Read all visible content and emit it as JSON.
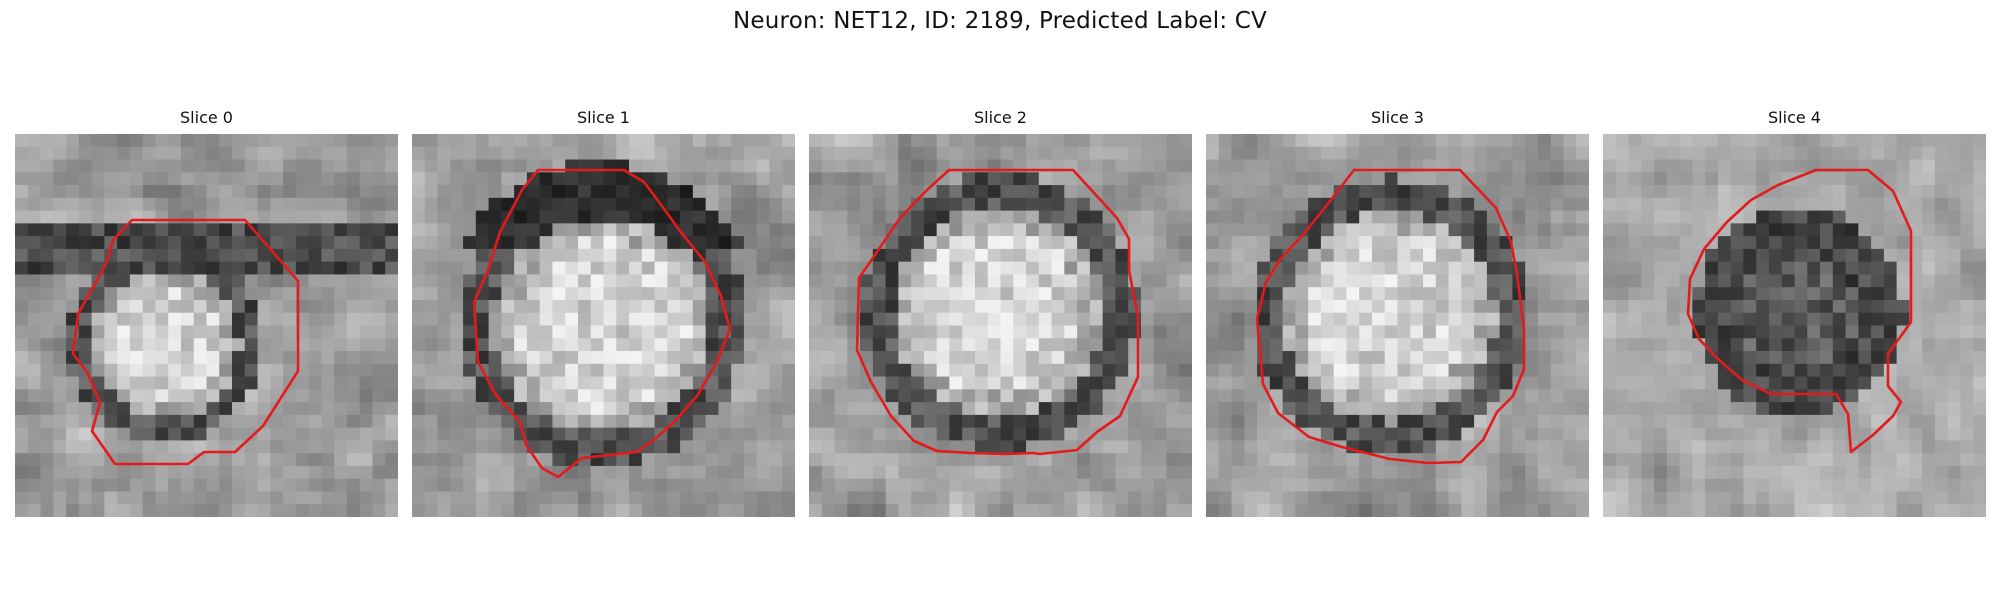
{
  "figure": {
    "title": "Neuron: NET12, ID: 2189, Predicted Label: CV"
  },
  "panels": [
    {
      "title": "Slice 0",
      "membrane": "ring-loose"
    },
    {
      "title": "Slice 1",
      "membrane": "ring-top-dark"
    },
    {
      "title": "Slice 2",
      "membrane": "ring-bright-center"
    },
    {
      "title": "Slice 3",
      "membrane": "ring-bright-center"
    },
    {
      "title": "Slice 4",
      "membrane": "dark-center"
    }
  ],
  "colors": {
    "contour": "#e41a1c",
    "background": "#ffffff"
  }
}
